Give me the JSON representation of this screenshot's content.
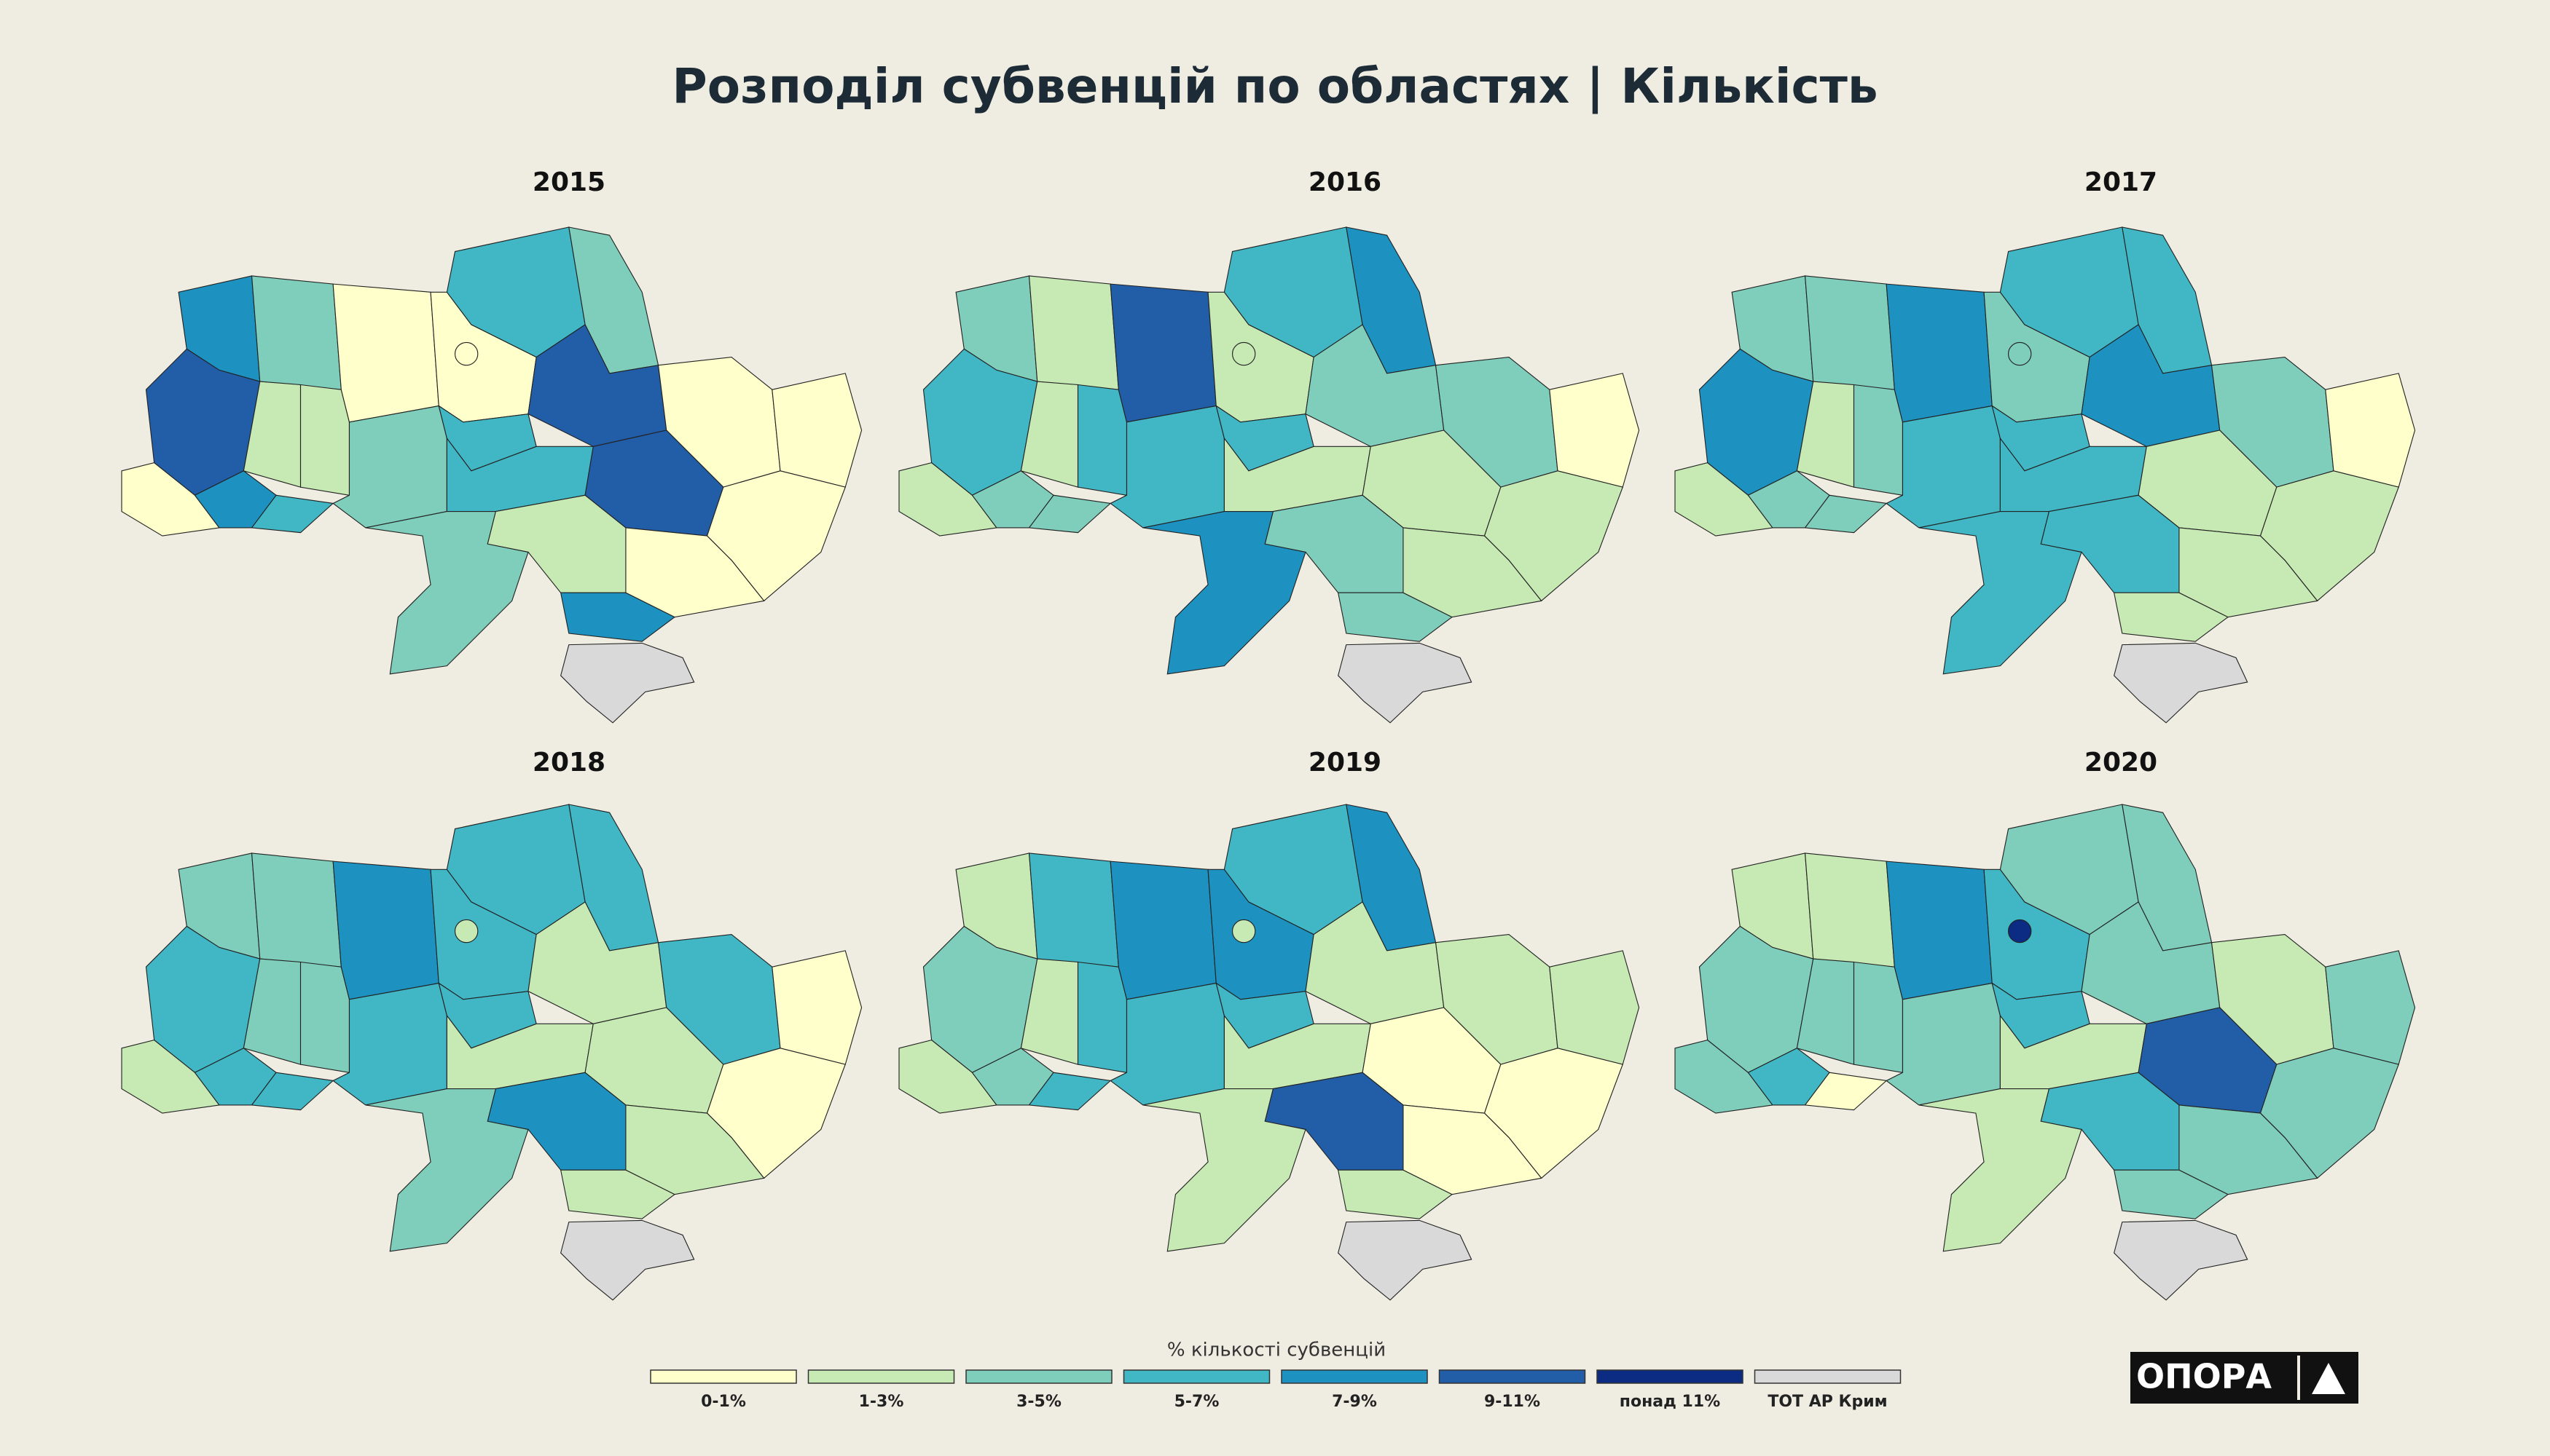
{
  "title": "Розподіл субвенцій по областях | Кількість",
  "maps": [
    {
      "year": "2015",
      "region_colors": [
        "#1d91c0",
        "#7fcdbb",
        "#225ea8",
        "#ffffcc",
        "#c7e9b4",
        "#c7e9b4",
        "#1d91c0",
        "#41b6c4",
        "#ffffcc",
        "#7fcdbb",
        "#ffffcc",
        "#41b6c4",
        "#7fcdbb",
        "#225ea8",
        "#ffffcc",
        "#ffffcc",
        "#41b6c4",
        "#41b6c4",
        "#225ea8",
        "#ffffcc",
        "#ffffcc",
        "#c7e9b4",
        "#1d91c0",
        "#7fcdbb",
        "#ffffcc",
        "#d9d9d9"
      ]
    },
    {
      "year": "2016",
      "region_colors": [
        "#7fcdbb",
        "#c7e9b4",
        "#41b6c4",
        "#c7e9b4",
        "#c7e9b4",
        "#41b6c4",
        "#7fcdbb",
        "#7fcdbb",
        "#225ea8",
        "#41b6c4",
        "#c7e9b4",
        "#41b6c4",
        "#1d91c0",
        "#7fcdbb",
        "#7fcdbb",
        "#ffffcc",
        "#41b6c4",
        "#c7e9b4",
        "#c7e9b4",
        "#c7e9b4",
        "#c7e9b4",
        "#7fcdbb",
        "#7fcdbb",
        "#1d91c0",
        "#c7e9b4",
        "#d9d9d9"
      ]
    },
    {
      "year": "2017",
      "region_colors": [
        "#7fcdbb",
        "#7fcdbb",
        "#1d91c0",
        "#c7e9b4",
        "#c7e9b4",
        "#7fcdbb",
        "#7fcdbb",
        "#7fcdbb",
        "#1d91c0",
        "#41b6c4",
        "#7fcdbb",
        "#41b6c4",
        "#41b6c4",
        "#1d91c0",
        "#7fcdbb",
        "#ffffcc",
        "#41b6c4",
        "#41b6c4",
        "#c7e9b4",
        "#c7e9b4",
        "#c7e9b4",
        "#41b6c4",
        "#c7e9b4",
        "#41b6c4",
        "#7fcdbb",
        "#d9d9d9"
      ]
    },
    {
      "year": "2018",
      "region_colors": [
        "#7fcdbb",
        "#7fcdbb",
        "#41b6c4",
        "#c7e9b4",
        "#7fcdbb",
        "#7fcdbb",
        "#41b6c4",
        "#41b6c4",
        "#1d91c0",
        "#41b6c4",
        "#41b6c4",
        "#41b6c4",
        "#41b6c4",
        "#c7e9b4",
        "#41b6c4",
        "#ffffcc",
        "#41b6c4",
        "#c7e9b4",
        "#c7e9b4",
        "#ffffcc",
        "#c7e9b4",
        "#1d91c0",
        "#c7e9b4",
        "#7fcdbb",
        "#c7e9b4",
        "#d9d9d9"
      ]
    },
    {
      "year": "2019",
      "region_colors": [
        "#c7e9b4",
        "#41b6c4",
        "#7fcdbb",
        "#c7e9b4",
        "#c7e9b4",
        "#41b6c4",
        "#7fcdbb",
        "#41b6c4",
        "#1d91c0",
        "#41b6c4",
        "#1d91c0",
        "#41b6c4",
        "#1d91c0",
        "#c7e9b4",
        "#c7e9b4",
        "#c7e9b4",
        "#41b6c4",
        "#c7e9b4",
        "#ffffcc",
        "#ffffcc",
        "#ffffcc",
        "#225ea8",
        "#c7e9b4",
        "#c7e9b4",
        "#c7e9b4",
        "#d9d9d9"
      ]
    },
    {
      "year": "2020",
      "region_colors": [
        "#c7e9b4",
        "#c7e9b4",
        "#7fcdbb",
        "#7fcdbb",
        "#7fcdbb",
        "#7fcdbb",
        "#41b6c4",
        "#ffffcc",
        "#1d91c0",
        "#7fcdbb",
        "#41b6c4",
        "#7fcdbb",
        "#7fcdbb",
        "#7fcdbb",
        "#c7e9b4",
        "#7fcdbb",
        "#41b6c4",
        "#c7e9b4",
        "#225ea8",
        "#7fcdbb",
        "#7fcdbb",
        "#41b6c4",
        "#7fcdbb",
        "#c7e9b4",
        "#0c2c84",
        "#d9d9d9"
      ]
    }
  ],
  "legend": {
    "title": "% кількості субвенцій",
    "items": [
      {
        "label": "0-1%",
        "color": "#ffffcc"
      },
      {
        "label": "1-3%",
        "color": "#c7e9b4"
      },
      {
        "label": "3-5%",
        "color": "#7fcdbb"
      },
      {
        "label": "5-7%",
        "color": "#41b6c4"
      },
      {
        "label": "7-9%",
        "color": "#1d91c0"
      },
      {
        "label": "9-11%",
        "color": "#225ea8"
      },
      {
        "label": "понад 11%",
        "color": "#0c2c84"
      },
      {
        "label": "ТОТ АР Крим",
        "color": "#d9d9d9"
      }
    ]
  },
  "logo": "ОПОРА"
}
